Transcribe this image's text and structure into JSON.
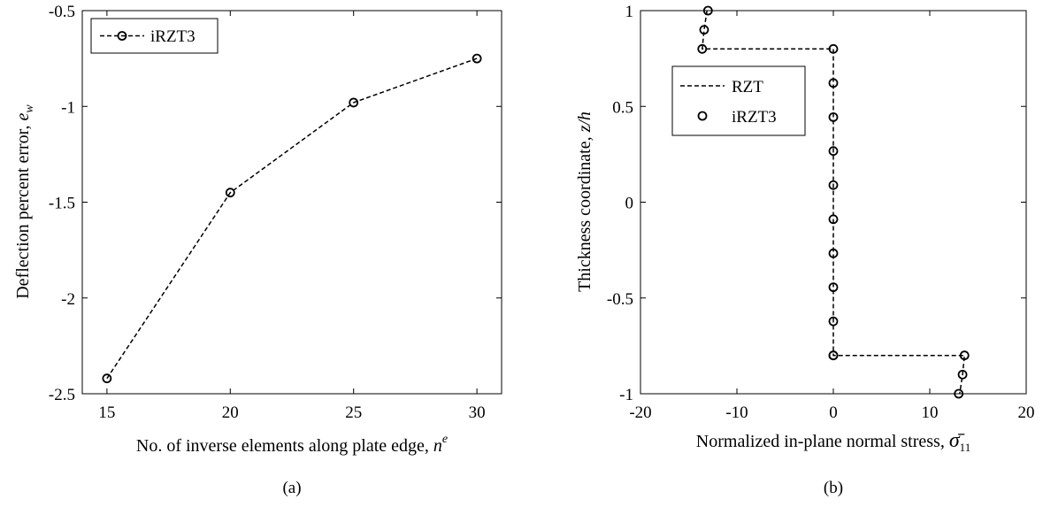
{
  "chart_data": [
    {
      "panel": "(a)",
      "type": "line",
      "xlabel": "No. of inverse elements along plate edge, ",
      "xlabel_symbol": "n",
      "xlabel_sup": "e",
      "ylabel": "Deflection percent error, ",
      "ylabel_symbol": "e",
      "ylabel_sub": "w",
      "xlim": [
        14,
        31
      ],
      "ylim": [
        -2.5,
        -0.5
      ],
      "xticks": [
        "15",
        "20",
        "25",
        "30"
      ],
      "xtick_values": [
        15,
        20,
        25,
        30
      ],
      "yticks": [
        "-2.5",
        "-2",
        "-1.5",
        "-1",
        "-0.5"
      ],
      "ytick_values": [
        -2.5,
        -2,
        -1.5,
        -1,
        -0.5
      ],
      "legend_position": "top-left",
      "series": [
        {
          "name": "iRZT3",
          "style": "dashed-line-circle-markers",
          "x": [
            15,
            20,
            25,
            30
          ],
          "y": [
            -2.42,
            -1.45,
            -0.98,
            -0.75
          ]
        }
      ]
    },
    {
      "panel": "(b)",
      "type": "line",
      "xlabel": "Normalized in-plane normal stress, ",
      "xlabel_symbol": "σ̄",
      "xlabel_sub": "11",
      "ylabel": "Thickness coordinate, ",
      "ylabel_symbol": "z/h",
      "xlim": [
        -20,
        20
      ],
      "ylim": [
        -1,
        1
      ],
      "xticks": [
        "-20",
        "-10",
        "0",
        "10",
        "20"
      ],
      "xtick_values": [
        -20,
        -10,
        0,
        10,
        20
      ],
      "yticks": [
        "-1",
        "-0.5",
        "0",
        "0.5",
        "1"
      ],
      "ytick_values": [
        -1,
        -0.5,
        0,
        0.5,
        1
      ],
      "legend_position": "top-left",
      "series": [
        {
          "name": "RZT",
          "style": "dashed-line",
          "x": [
            -13.1,
            -13.4,
            -13.6,
            -13.6,
            0,
            0,
            13.6,
            13.6,
            13.4,
            13.1
          ],
          "y": [
            1,
            0.9,
            0.8,
            0.8,
            0.8,
            -0.8,
            -0.8,
            -0.8,
            -0.9,
            -1
          ]
        },
        {
          "name": "iRZT3",
          "style": "circle-markers",
          "x": [
            -13.0,
            -13.4,
            -13.6,
            0,
            0,
            0,
            0,
            0,
            0,
            0,
            0,
            0,
            0,
            0,
            13.6,
            13.4,
            13.0
          ],
          "y": [
            1,
            0.9,
            0.8,
            0.8,
            0.622,
            0.444,
            0.267,
            0.089,
            -0.089,
            -0.267,
            -0.444,
            -0.622,
            -0.8,
            -0.8,
            -0.8,
            -0.9,
            -1
          ]
        }
      ]
    }
  ]
}
